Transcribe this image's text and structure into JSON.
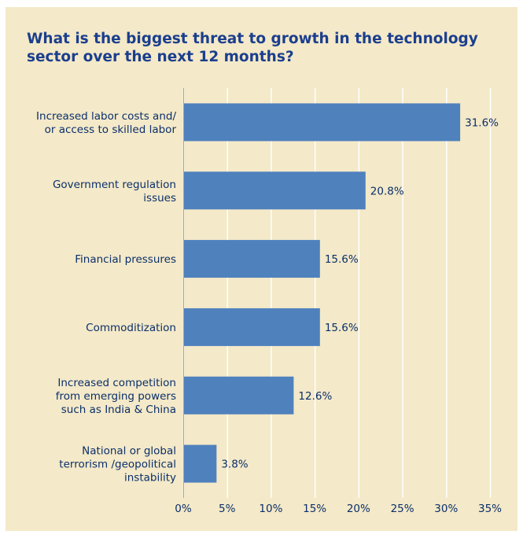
{
  "colors": {
    "background": "#f4e9c8",
    "bar": "#4f81bd",
    "grid": "#ffffff",
    "title": "#1b3f8e",
    "text": "#0a2f6b"
  },
  "chart_data": {
    "type": "bar",
    "orientation": "horizontal",
    "title": "What is the biggest threat to growth in the technology sector over the next 12 months?",
    "xlabel": "",
    "ylabel": "",
    "xlim": [
      0,
      35
    ],
    "grid": true,
    "ticks": [
      "0%",
      "5%",
      "10%",
      "15%",
      "20%",
      "25%",
      "30%",
      "35%"
    ],
    "tick_values": [
      0,
      5,
      10,
      15,
      20,
      25,
      30,
      35
    ],
    "categories": [
      [
        "Increased labor costs and/",
        "or access to skilled labor"
      ],
      [
        "Government regulation",
        "issues"
      ],
      [
        "Financial pressures"
      ],
      [
        "Commoditization"
      ],
      [
        "Increased competition",
        "from emerging powers",
        "such as India & China"
      ],
      [
        "National or global",
        "terrorism /geopolitical",
        "instability"
      ]
    ],
    "values": [
      31.6,
      20.8,
      15.6,
      15.6,
      12.6,
      3.8
    ],
    "value_labels": [
      "31.6%",
      "20.8%",
      "15.6%",
      "15.6%",
      "12.6%",
      "3.8%"
    ]
  }
}
